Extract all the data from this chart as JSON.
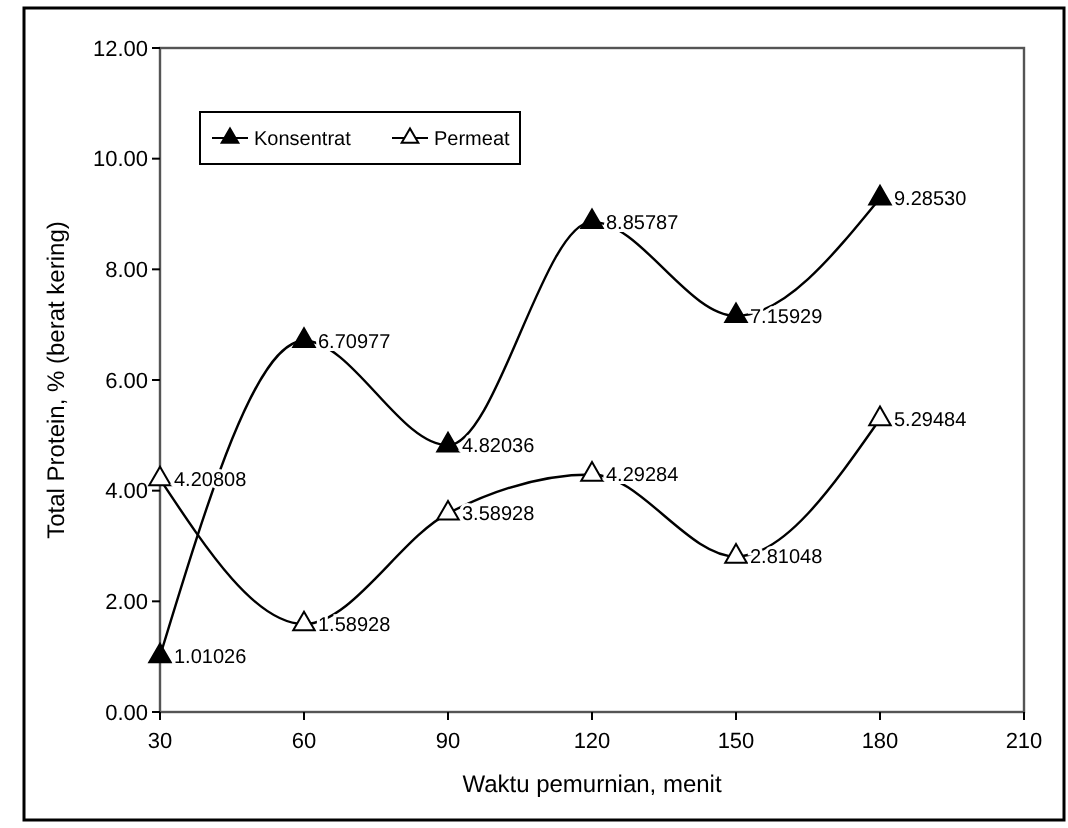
{
  "chart_data": {
    "type": "line",
    "xlabel": "Waktu pemurnian, menit",
    "ylabel": "Total Protein, % (berat kering)",
    "x": [
      30,
      60,
      90,
      120,
      150,
      180
    ],
    "series": [
      {
        "name": "Konsentrat",
        "color": "#000000",
        "values": [
          1.01026,
          6.70977,
          4.82036,
          8.85787,
          7.15929,
          9.2853
        ],
        "value_labels": [
          "1.01026",
          "6.70977",
          "4.82036",
          "8.85787",
          "7.15929",
          "9.28530"
        ]
      },
      {
        "name": "Permeat",
        "color": "#000000",
        "values": [
          4.20808,
          1.58928,
          3.58928,
          4.29284,
          2.81048,
          5.29484
        ],
        "value_labels": [
          "4.20808",
          "1.58928",
          "3.58928",
          "4.29284",
          "2.81048",
          "5.29484"
        ]
      }
    ],
    "xlim": [
      30,
      210
    ],
    "xticks": [
      30,
      60,
      90,
      120,
      150,
      180,
      210
    ],
    "ylim": [
      0,
      12
    ],
    "yticks": [
      {
        "value": 0,
        "label": "0.00"
      },
      {
        "value": 2,
        "label": "2.00"
      },
      {
        "value": 4,
        "label": "4.00"
      },
      {
        "value": 6,
        "label": "6.00"
      },
      {
        "value": 8,
        "label": "8.00"
      },
      {
        "value": 10,
        "label": "10.00"
      },
      {
        "value": 12,
        "label": "12.00"
      }
    ],
    "grid": false,
    "legend": "top left",
    "marker": "triangle"
  }
}
